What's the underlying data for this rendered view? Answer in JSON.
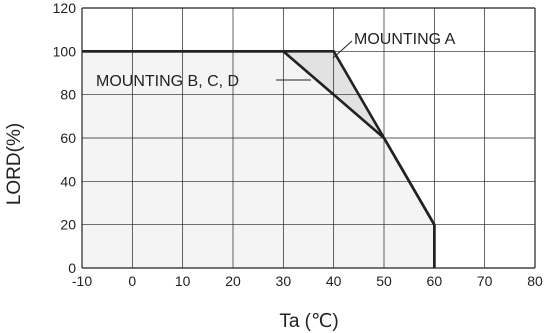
{
  "chart_data": {
    "type": "line",
    "title": "",
    "xlabel": "Ta (℃)",
    "ylabel": "LORD(%)",
    "xlim": [
      -10,
      80
    ],
    "ylim": [
      0,
      120
    ],
    "xticks": [
      -10,
      0,
      10,
      20,
      30,
      40,
      50,
      60,
      70,
      80
    ],
    "yticks": [
      0,
      20,
      40,
      60,
      80,
      100,
      120
    ],
    "grid": true,
    "series": [
      {
        "name": "MOUNTING A",
        "points": [
          [
            -10,
            100
          ],
          [
            40,
            100
          ],
          [
            50,
            60
          ],
          [
            60,
            20
          ],
          [
            60,
            0
          ]
        ],
        "fill": "#e2e2e2"
      },
      {
        "name": "MOUNTING B, C, D",
        "points": [
          [
            -10,
            100
          ],
          [
            30,
            100
          ],
          [
            40,
            80
          ],
          [
            50,
            60
          ],
          [
            60,
            20
          ],
          [
            60,
            0
          ]
        ],
        "fill": "#f4f4f4"
      }
    ],
    "annotations": [
      {
        "text": "MOUNTING A",
        "series": 0
      },
      {
        "text": "MOUNTING B, C, D",
        "series": 1
      }
    ],
    "colors": {
      "line": "#222222",
      "grid": "#222222"
    }
  }
}
